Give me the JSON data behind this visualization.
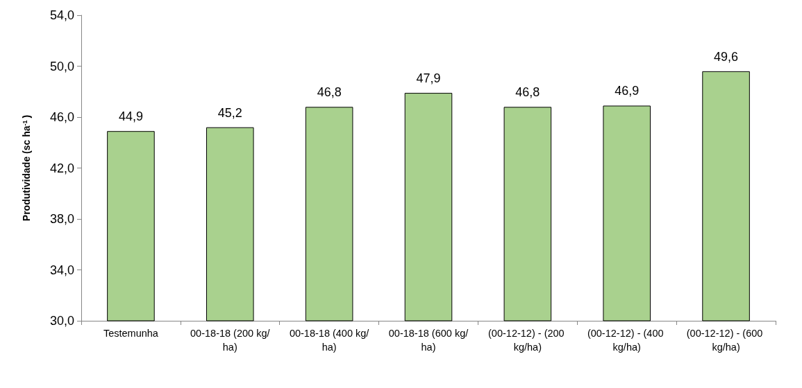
{
  "chart_data": {
    "type": "bar",
    "ylabel": "Produtividade (sc ha$^{-1}$)",
    "categories": [
      "Testemunha",
      "00-18-18 (200 kg/ha)",
      "00-18-18 (400 kg/ha)",
      "00-18-18 (600 kg/ha)",
      "(00-12-12) - (200 kg/ha)",
      "(00-12-12) - (400 kg/ha)",
      "(00-12-12) - (600 kg/ha)"
    ],
    "values": [
      44.9,
      45.2,
      46.8,
      47.9,
      46.8,
      46.9,
      49.6
    ],
    "color": "#a9d18e",
    "ylim": [
      30,
      54
    ],
    "yticks": [
      {
        "value": 30,
        "label": "30,0"
      },
      {
        "value": 34,
        "label": "34,0"
      },
      {
        "value": 38,
        "label": "38,0"
      },
      {
        "value": 42,
        "label": "42,0"
      },
      {
        "value": 46,
        "label": "46,0"
      },
      {
        "value": 50,
        "label": "50,0"
      },
      {
        "value": 54,
        "label": "54,0"
      }
    ],
    "value_labels": [
      "44,9",
      "45,2",
      "46,8",
      "47,9",
      "46,8",
      "46,9",
      "49,6"
    ],
    "grid": false
  }
}
